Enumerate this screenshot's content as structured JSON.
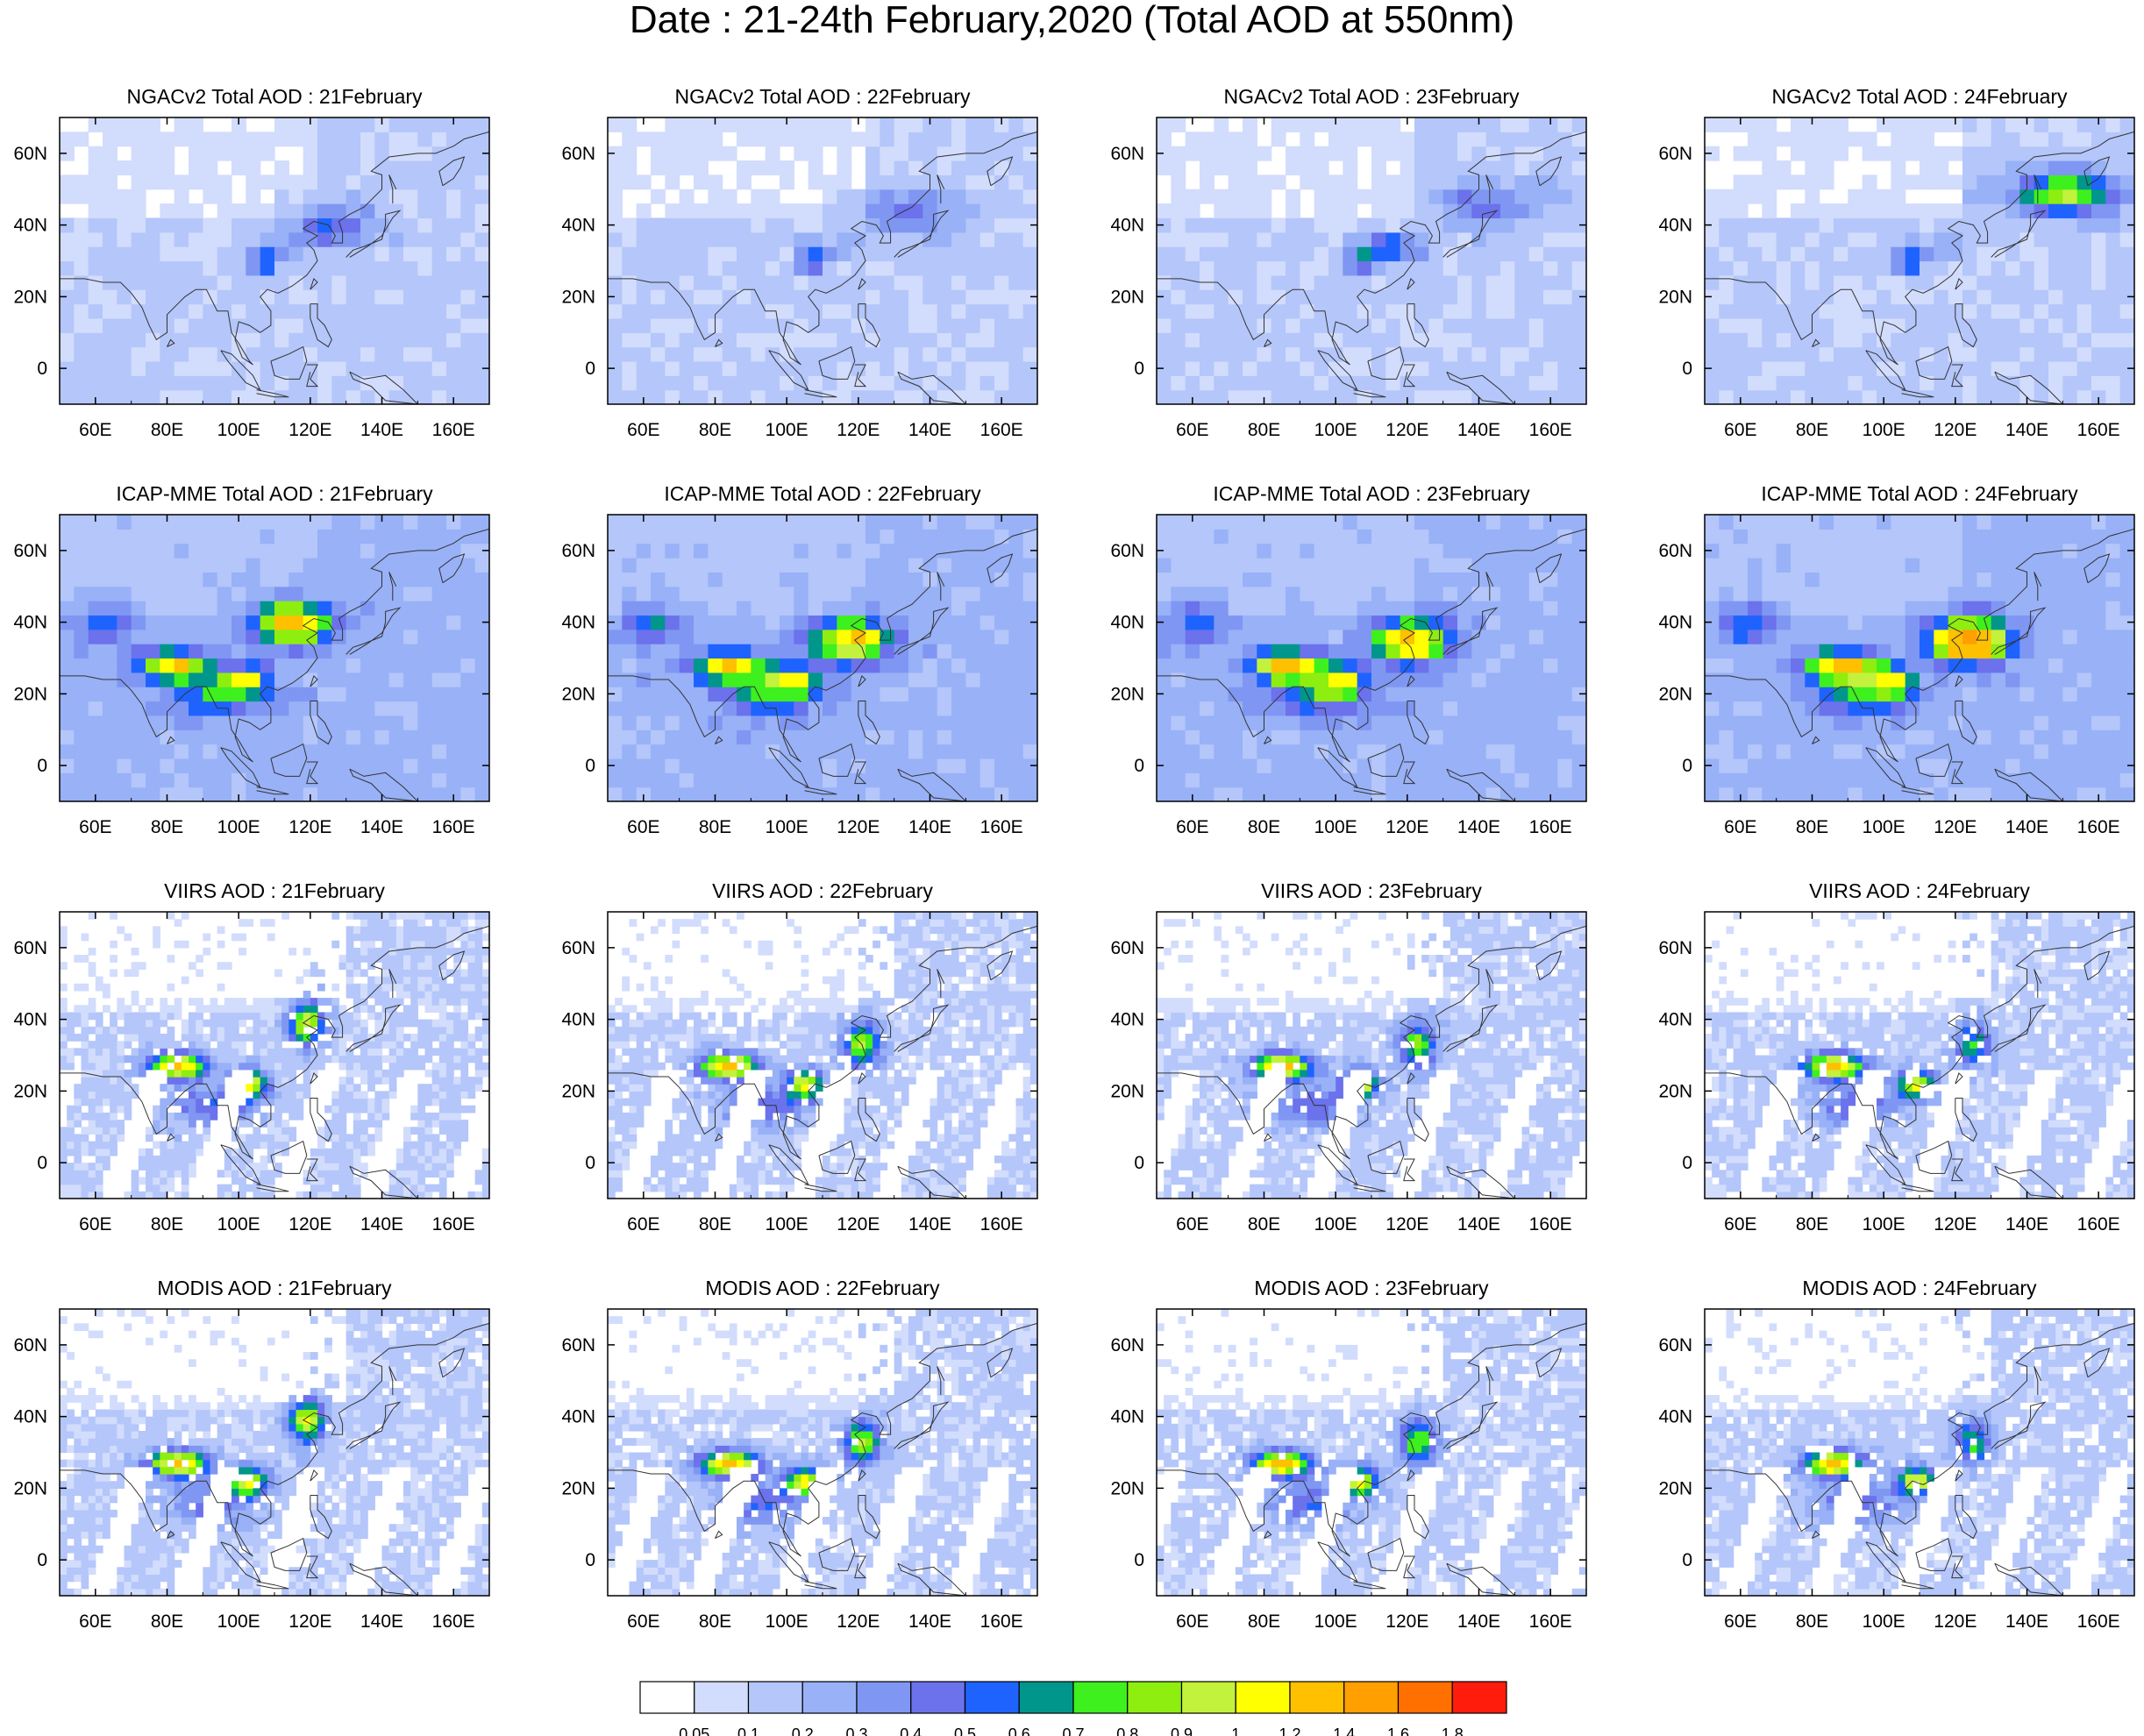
{
  "title": "Date : 21-24th February,2020 (Total AOD at 550nm)",
  "map_extent": {
    "lon": [
      50,
      170
    ],
    "lat": [
      -10,
      70
    ]
  },
  "lon_ticks": [
    {
      "value": 60,
      "label": "60E"
    },
    {
      "value": 80,
      "label": "80E"
    },
    {
      "value": 100,
      "label": "100E"
    },
    {
      "value": 120,
      "label": "120E"
    },
    {
      "value": 140,
      "label": "140E"
    },
    {
      "value": 160,
      "label": "160E"
    }
  ],
  "lat_ticks": [
    {
      "value": 60,
      "label": "60N"
    },
    {
      "value": 40,
      "label": "40N"
    },
    {
      "value": 20,
      "label": "20N"
    },
    {
      "value": 0,
      "label": "0"
    }
  ],
  "rows": [
    {
      "name": "ngacv2",
      "style": "model",
      "titles": [
        "NGACv2 Total AOD : 21February",
        "NGACv2 Total AOD : 22February",
        "NGACv2 Total AOD : 23February",
        "NGACv2 Total AOD : 24February"
      ]
    },
    {
      "name": "icap-mme",
      "style": "ensemble",
      "titles": [
        "ICAP-MME Total AOD : 21February",
        "ICAP-MME Total AOD : 22February",
        "ICAP-MME Total AOD : 23February",
        "ICAP-MME Total AOD : 24February"
      ]
    },
    {
      "name": "viirs",
      "style": "satellite",
      "titles": [
        "VIIRS AOD : 21February",
        "VIIRS AOD : 22February",
        "VIIRS AOD : 23February",
        "VIIRS AOD : 24February"
      ]
    },
    {
      "name": "modis",
      "style": "satellite",
      "titles": [
        "MODIS AOD : 21February",
        "MODIS AOD : 22February",
        "MODIS AOD : 23February",
        "MODIS AOD : 24February"
      ]
    }
  ],
  "colorbar": {
    "labels": [
      "0.05",
      "0.1",
      "0.2",
      "0.3",
      "0.4",
      "0.5",
      "0.6",
      "0.7",
      "0.8",
      "0.9",
      "1",
      "1.2",
      "1.4",
      "1.6",
      "1.8"
    ],
    "colors": [
      "#ffffff",
      "#d2dcfc",
      "#b4c6fa",
      "#98b1f7",
      "#7f97f2",
      "#6b72ec",
      "#1f63ff",
      "#00968c",
      "#3ef01e",
      "#8eee10",
      "#c3f23c",
      "#ffff00",
      "#ffc000",
      "#ff9f00",
      "#ff7000",
      "#ff1c0c"
    ]
  }
}
